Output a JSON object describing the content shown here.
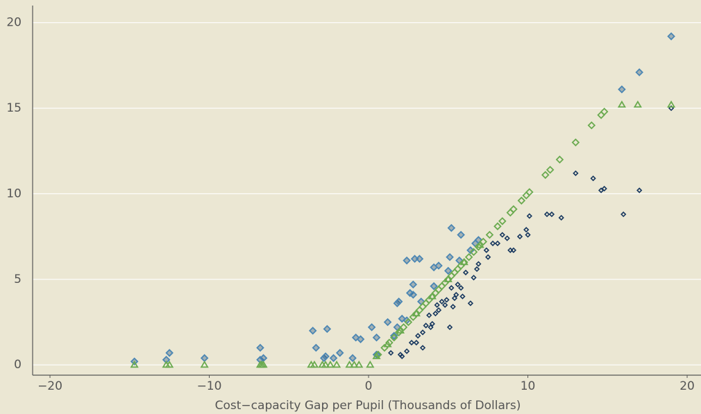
{
  "chart_data": {
    "type": "scatter",
    "x_label": "Cost−capacity Gap per Pupil (Thousands of Dollars)",
    "xlim": [
      -21.09,
      20.87
    ],
    "ylim": [
      -0.6,
      21.0
    ],
    "xticks": [
      {
        "value": -20,
        "label": "−20"
      },
      {
        "value": -10,
        "label": "−10"
      },
      0,
      10,
      20
    ],
    "yticks": [
      0,
      5,
      10,
      15,
      20
    ],
    "grid": true,
    "series": [
      {
        "color": "#4a86b4",
        "marker": "diamond",
        "x": [
          -14.7,
          -12.7,
          -12.5,
          -10.3,
          -6.8,
          -6.8,
          -6.6,
          -3.5,
          -3.3,
          -2.6,
          -2.8,
          -2.7,
          -2.2,
          -1.8,
          -1.0,
          -0.8,
          -0.5,
          0.2,
          0.5,
          0.5,
          1.2,
          1.6,
          1.8,
          2.1,
          1.8,
          1.9,
          2.4,
          2.4,
          2.6,
          2.8,
          2.9,
          3.2,
          2.8,
          3.3,
          4.1,
          4.4,
          4.1,
          5.0,
          5.1,
          5.2,
          5.7,
          5.8,
          6.4,
          6.7,
          6.9,
          19.0,
          15.9,
          17.0
        ],
        "y": [
          0.2,
          0.3,
          0.7,
          0.4,
          0.3,
          1.0,
          0.4,
          2.0,
          1.0,
          2.1,
          0.4,
          0.5,
          0.4,
          0.7,
          0.4,
          1.6,
          1.5,
          2.2,
          0.6,
          1.6,
          2.5,
          1.7,
          2.2,
          2.7,
          3.6,
          3.7,
          2.6,
          6.1,
          4.2,
          4.7,
          6.2,
          6.2,
          4.1,
          3.7,
          5.7,
          5.8,
          4.6,
          5.5,
          6.3,
          8.0,
          6.1,
          7.6,
          6.7,
          7.1,
          7.3,
          19.2,
          16.1,
          17.1
        ]
      },
      {
        "color": "#17375e",
        "marker": "diamond",
        "x": [
          1.4,
          2.0,
          2.1,
          2.4,
          2.7,
          3.0,
          3.1,
          3.4,
          3.4,
          3.6,
          3.8,
          3.9,
          4.0,
          4.2,
          4.3,
          4.4,
          4.6,
          4.8,
          4.9,
          5.1,
          5.2,
          5.3,
          5.4,
          5.5,
          5.6,
          5.8,
          5.9,
          6.1,
          6.4,
          6.6,
          6.8,
          6.9,
          7.4,
          7.5,
          7.8,
          8.1,
          8.4,
          8.7,
          8.9,
          9.1,
          9.5,
          9.9,
          10.0,
          10.1,
          11.2,
          11.5,
          12.1,
          13.0,
          14.1,
          14.6,
          14.8,
          16.0,
          17.0,
          19.0
        ],
        "y": [
          0.7,
          0.6,
          0.5,
          0.8,
          1.3,
          1.3,
          1.7,
          1.0,
          1.9,
          2.3,
          2.9,
          2.2,
          2.4,
          3.0,
          3.5,
          3.2,
          3.7,
          3.5,
          3.8,
          2.2,
          4.5,
          3.4,
          3.9,
          4.1,
          4.7,
          4.5,
          4.0,
          5.4,
          3.6,
          5.1,
          5.6,
          5.9,
          6.7,
          6.3,
          7.1,
          7.1,
          7.6,
          7.4,
          6.7,
          6.7,
          7.5,
          7.9,
          7.6,
          8.7,
          8.8,
          8.8,
          8.6,
          11.2,
          10.9,
          10.2,
          10.3,
          8.8,
          10.2,
          15.0
        ]
      },
      {
        "color": "#6aaa4f",
        "marker": "diamond",
        "x": [
          0.6,
          1.0,
          1.3,
          1.6,
          1.9,
          2.2,
          2.5,
          2.8,
          3.0,
          3.2,
          3.4,
          3.6,
          3.8,
          4.0,
          4.2,
          4.4,
          4.6,
          4.8,
          5.0,
          5.2,
          5.4,
          5.6,
          5.8,
          6.0,
          6.3,
          6.6,
          6.9,
          7.2,
          7.6,
          8.1,
          8.4,
          8.9,
          9.1,
          9.6,
          9.9,
          10.1,
          11.1,
          11.4,
          12.0,
          13.0,
          14.0,
          14.6,
          14.8
        ],
        "y": [
          0.6,
          1.0,
          1.3,
          1.6,
          1.9,
          2.2,
          2.5,
          2.8,
          3.0,
          3.2,
          3.4,
          3.6,
          3.8,
          4.0,
          4.2,
          4.4,
          4.6,
          4.8,
          5.0,
          5.2,
          5.4,
          5.6,
          5.8,
          6.0,
          6.3,
          6.6,
          6.9,
          7.2,
          7.6,
          8.1,
          8.4,
          8.9,
          9.1,
          9.6,
          9.9,
          10.1,
          11.1,
          11.4,
          12.0,
          13.0,
          14.0,
          14.6,
          14.8
        ]
      },
      {
        "color": "#6aaa4f",
        "marker": "triangle",
        "x": [
          -14.7,
          -12.7,
          -12.5,
          -10.3,
          -6.8,
          -6.7,
          -6.6,
          -3.6,
          -3.4,
          -2.9,
          -2.7,
          -2.4,
          -2.0,
          -1.2,
          -0.9,
          -0.6,
          0.1,
          0.5,
          1.2,
          2.0,
          3.0,
          4.0,
          5.0,
          6.0,
          7.0,
          15.9,
          16.9,
          19.0
        ],
        "y": [
          0,
          0,
          0,
          0,
          0,
          0,
          0,
          0,
          0,
          0,
          0,
          0,
          0,
          0,
          0,
          0,
          0,
          0.5,
          1.2,
          2.0,
          3.0,
          4.0,
          5.0,
          6.0,
          7.0,
          15.2,
          15.2,
          15.2
        ]
      }
    ]
  }
}
